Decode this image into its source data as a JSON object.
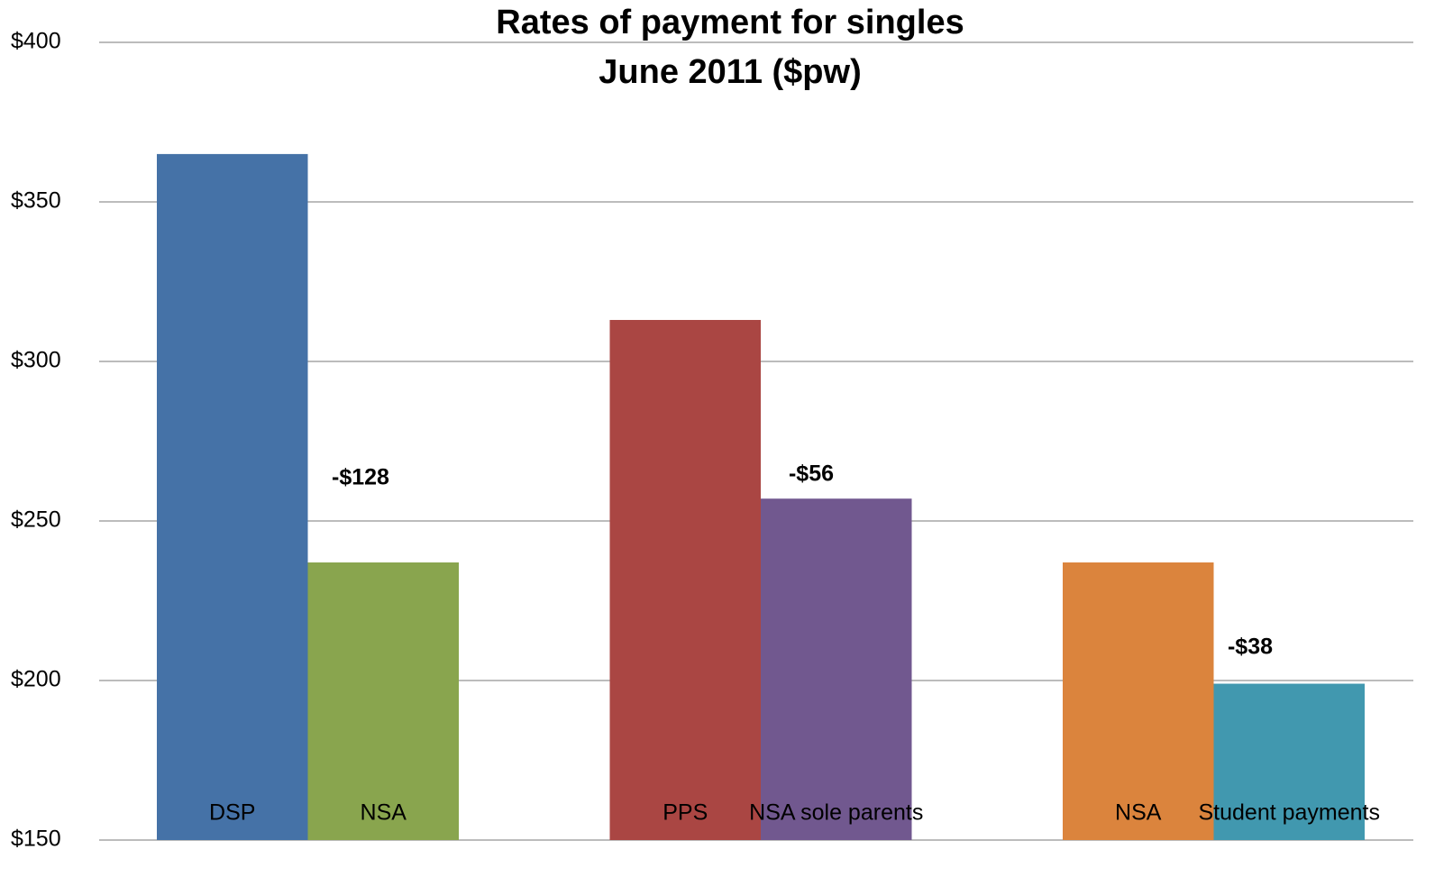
{
  "chart_data": {
    "type": "bar",
    "title": "Rates of payment for singles",
    "subtitle": "June 2011 ($pw)",
    "categories": [
      "DSP",
      "NSA",
      "PPS",
      "NSA sole parents",
      "NSA",
      "Student payments"
    ],
    "values": [
      365,
      237,
      313,
      257,
      237,
      199
    ],
    "colors": [
      "#4572a7",
      "#89a54e",
      "#aa4643",
      "#71588f",
      "#db843d",
      "#4198af"
    ],
    "annotations": [
      "-$128",
      "-$56",
      "-$38"
    ],
    "ylim": [
      150,
      400
    ],
    "yticks": [
      {
        "value": 150,
        "label": "$150"
      },
      {
        "value": 200,
        "label": "$200"
      },
      {
        "value": 250,
        "label": "$250"
      },
      {
        "value": 300,
        "label": "$300"
      },
      {
        "value": 350,
        "label": "$350"
      },
      {
        "value": 400,
        "label": "$400"
      }
    ],
    "grid": true
  }
}
